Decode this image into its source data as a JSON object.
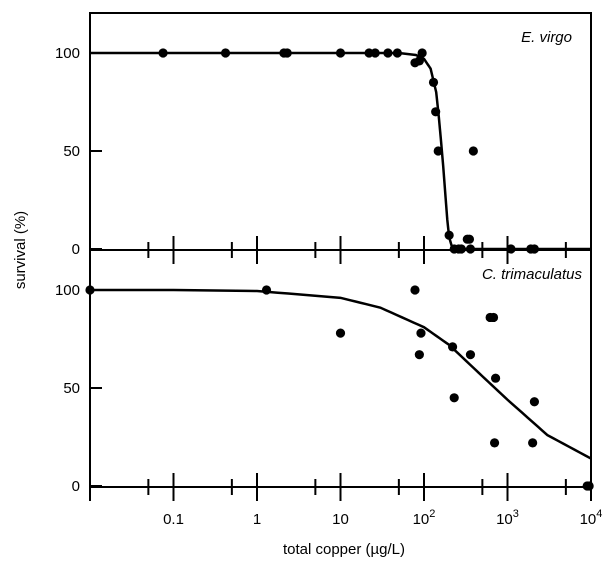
{
  "chart_data": [
    {
      "type": "scatter",
      "title": "E. virgo",
      "xlabel": "total copper (µg/L)",
      "ylabel": "survival (%)",
      "xscale": "log",
      "xlim": [
        0.01,
        10000
      ],
      "ylim": [
        0,
        100
      ],
      "yticks": [
        0,
        50,
        100
      ],
      "grid": false,
      "legend": "none",
      "x_tick_labels": [
        "0.1",
        "1",
        "10",
        "10",
        "10",
        "10"
      ],
      "x_tick_exponents": [
        "",
        "",
        "",
        "2",
        "3",
        "4"
      ],
      "series": [
        {
          "x": [
            0.075,
            0.42,
            2.1,
            2.3,
            10,
            22,
            26,
            37,
            48,
            78,
            88,
            95,
            130,
            138,
            148,
            390,
            200,
            230,
            260,
            280,
            330,
            350,
            360,
            1100,
            1900,
            2100
          ],
          "y": [
            100,
            100,
            100,
            100,
            100,
            100,
            100,
            100,
            100,
            95,
            96,
            100,
            85,
            70,
            50,
            50,
            7,
            0,
            0,
            0,
            5,
            5,
            0,
            0,
            0,
            0
          ]
        }
      ],
      "fit_curve": {
        "x": [
          0.01,
          1,
          10,
          50,
          80,
          100,
          120,
          140,
          150,
          160,
          170,
          180,
          190,
          200,
          220,
          260,
          400,
          10000
        ],
        "y": [
          100,
          100,
          100,
          100,
          99,
          97,
          92,
          80,
          68,
          55,
          42,
          28,
          15,
          6,
          0,
          0,
          0,
          0
        ]
      }
    },
    {
      "type": "scatter",
      "title": "C.  trimaculatus",
      "xlabel": "total copper (µg/L)",
      "ylabel": "survival (%)",
      "xscale": "log",
      "xlim": [
        0.01,
        10000
      ],
      "ylim": [
        0,
        100
      ],
      "yticks": [
        0,
        50,
        100
      ],
      "grid": false,
      "legend": "none",
      "series": [
        {
          "x": [
            0.01,
            1.3,
            10,
            78,
            88,
            92,
            220,
            230,
            360,
            620,
            680,
            700,
            720,
            2000,
            2100,
            9000,
            9500
          ],
          "y": [
            100,
            100,
            78,
            100,
            67,
            78,
            71,
            45,
            67,
            86,
            86,
            22,
            55,
            22,
            43,
            0,
            0
          ]
        }
      ],
      "fit_curve": {
        "x": [
          0.01,
          0.1,
          1,
          10,
          30,
          100,
          200,
          500,
          1000,
          3000,
          10000
        ],
        "y": [
          100,
          100,
          99.5,
          96,
          91,
          81,
          72,
          56,
          44,
          26,
          14
        ]
      }
    }
  ]
}
